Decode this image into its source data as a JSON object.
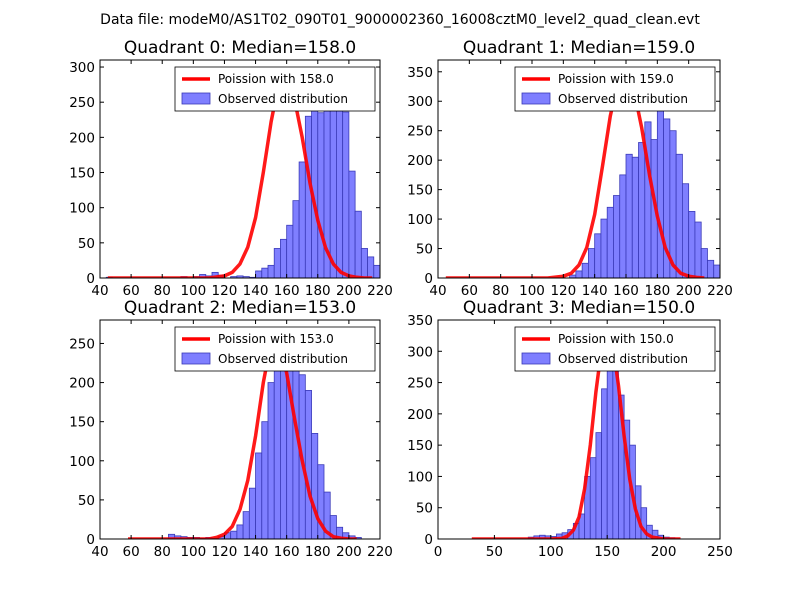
{
  "figure": {
    "suptitle": "Data file: modeM0/AS1T02_090T01_9000002360_16008cztM0_level2_quad_clean.evt"
  },
  "colors": {
    "bar_fill": "#7f7fff",
    "bar_edge": "#3a3ab8",
    "curve": "#ff0000",
    "axes": "#000000"
  },
  "chart_data": [
    {
      "type": "bar",
      "title": "Quadrant 0: Median=158.0",
      "xlim": [
        40,
        220
      ],
      "ylim": [
        0,
        310
      ],
      "xticks": [
        40,
        60,
        80,
        100,
        120,
        140,
        160,
        180,
        200,
        220
      ],
      "yticks": [
        0,
        50,
        100,
        150,
        200,
        250,
        300
      ],
      "legend": {
        "curve_label": "Poission with 158.0",
        "bars_label": "Observed distribution",
        "position": "top-right"
      },
      "hist": {
        "bin_width": 4,
        "start": 44,
        "counts": [
          1,
          0,
          0,
          0,
          0,
          0,
          0,
          0,
          0,
          0,
          0,
          0,
          2,
          0,
          2,
          5,
          3,
          8,
          4,
          0,
          2,
          3,
          2,
          1,
          10,
          14,
          18,
          42,
          55,
          75,
          110,
          165,
          230,
          280,
          235,
          238,
          270,
          268,
          236,
          152,
          95,
          42,
          30,
          18,
          12,
          8,
          6,
          3,
          2,
          1
        ]
      },
      "curve": {
        "label": "Poission with 158.0",
        "x": [
          45,
          60,
          80,
          100,
          110,
          120,
          125,
          130,
          135,
          140,
          145,
          150,
          155,
          158,
          160,
          165,
          170,
          175,
          180,
          185,
          190,
          195,
          200,
          205,
          210,
          215
        ],
        "y": [
          0,
          0,
          0,
          0,
          0,
          3,
          8,
          20,
          44,
          86,
          150,
          222,
          278,
          290,
          285,
          255,
          200,
          135,
          82,
          43,
          20,
          8,
          3,
          1,
          0,
          0
        ]
      }
    },
    {
      "type": "bar",
      "title": "Quadrant 1: Median=159.0",
      "xlim": [
        40,
        220
      ],
      "ylim": [
        0,
        370
      ],
      "xticks": [
        40,
        60,
        80,
        100,
        120,
        140,
        160,
        180,
        200,
        220
      ],
      "yticks": [
        0,
        50,
        100,
        150,
        200,
        250,
        300,
        350
      ],
      "legend": {
        "curve_label": "Poission with 159.0",
        "bars_label": "Observed distribution",
        "position": "top-right"
      },
      "hist": {
        "bin_width": 4,
        "start": 124,
        "counts": [
          5,
          12,
          25,
          50,
          75,
          100,
          120,
          140,
          175,
          210,
          205,
          230,
          265,
          235,
          335,
          270,
          250,
          210,
          160,
          113,
          95,
          50,
          30,
          22,
          12,
          5
        ]
      },
      "curve": {
        "label": "Poission with 159.0",
        "x": [
          45,
          60,
          80,
          100,
          110,
          120,
          125,
          130,
          135,
          140,
          145,
          150,
          155,
          159,
          165,
          170,
          175,
          180,
          185,
          190,
          195,
          200,
          205,
          210
        ],
        "y": [
          0,
          0,
          0,
          0,
          0,
          3,
          8,
          22,
          52,
          108,
          190,
          275,
          335,
          352,
          320,
          255,
          175,
          105,
          52,
          22,
          8,
          3,
          1,
          0
        ]
      }
    },
    {
      "type": "bar",
      "title": "Quadrant 2: Median=153.0",
      "xlim": [
        40,
        220
      ],
      "ylim": [
        0,
        280
      ],
      "xticks": [
        40,
        60,
        80,
        100,
        120,
        140,
        160,
        180,
        200,
        220
      ],
      "yticks": [
        0,
        50,
        100,
        150,
        200,
        250
      ],
      "legend": {
        "curve_label": "Poission with 153.0",
        "bars_label": "Observed distribution",
        "position": "top-right"
      },
      "hist": {
        "bin_width": 4,
        "start": 84,
        "counts": [
          6,
          4,
          3,
          2,
          2,
          1,
          2,
          1,
          3,
          8,
          10,
          18,
          35,
          65,
          110,
          150,
          200,
          235,
          270,
          250,
          230,
          210,
          190,
          135,
          95,
          60,
          30,
          15,
          8,
          4,
          2
        ]
      },
      "curve": {
        "label": "Poission with 153.0",
        "x": [
          58,
          70,
          90,
          100,
          110,
          115,
          120,
          125,
          130,
          135,
          140,
          145,
          150,
          153,
          155,
          160,
          165,
          170,
          175,
          180,
          185,
          190,
          195,
          200,
          205
        ],
        "y": [
          0,
          0,
          0,
          0,
          0,
          2,
          6,
          16,
          38,
          75,
          132,
          200,
          252,
          263,
          255,
          212,
          155,
          100,
          55,
          26,
          10,
          3,
          1,
          0,
          0
        ]
      }
    },
    {
      "type": "bar",
      "title": "Quadrant 3: Median=150.0",
      "xlim": [
        0,
        250
      ],
      "ylim": [
        0,
        350
      ],
      "xticks": [
        0,
        50,
        100,
        150,
        200,
        250
      ],
      "yticks": [
        0,
        50,
        100,
        150,
        200,
        250,
        300,
        350
      ],
      "legend": {
        "curve_label": "Poission with 150.0",
        "bars_label": "Observed distribution",
        "position": "top-right"
      },
      "hist": {
        "bin_width": 5,
        "start": 80,
        "counts": [
          3,
          5,
          6,
          5,
          4,
          8,
          10,
          15,
          25,
          40,
          100,
          130,
          170,
          240,
          290,
          305,
          230,
          190,
          150,
          85,
          50,
          22,
          14,
          6,
          3,
          2
        ]
      },
      "curve": {
        "label": "Poission with 150.0",
        "x": [
          30,
          60,
          90,
          100,
          110,
          115,
          120,
          125,
          130,
          135,
          140,
          145,
          150,
          155,
          160,
          165,
          170,
          175,
          180,
          185,
          190,
          200,
          215
        ],
        "y": [
          0,
          0,
          0,
          0,
          1,
          5,
          14,
          35,
          80,
          150,
          235,
          305,
          335,
          310,
          245,
          165,
          95,
          48,
          20,
          8,
          3,
          0,
          0
        ]
      }
    }
  ]
}
